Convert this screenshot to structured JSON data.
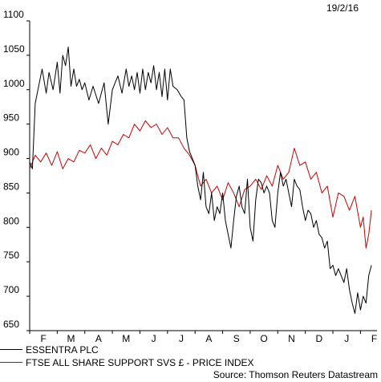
{
  "date_label": "19/2/16",
  "source": "Source: Thomson Reuters Datastream",
  "colors": {
    "essentra": "#000000",
    "ftse": "#cc0000"
  },
  "chart_data": {
    "type": "line",
    "ylim": [
      650,
      1100
    ],
    "yticks": [
      650,
      700,
      750,
      800,
      850,
      900,
      950,
      1000,
      1050,
      1100
    ],
    "xlim": [
      0,
      12.6
    ],
    "month_ticks": [
      "F",
      "M",
      "A",
      "M",
      "J",
      "J",
      "A",
      "S",
      "O",
      "N",
      "D",
      "J",
      "F"
    ],
    "series": [
      {
        "name": "ESSENTRA PLC",
        "color": "#000000",
        "x": [
          0,
          0.1,
          0.2,
          0.3,
          0.45,
          0.6,
          0.7,
          0.85,
          1.0,
          1.1,
          1.2,
          1.3,
          1.4,
          1.5,
          1.6,
          1.7,
          1.8,
          1.9,
          2.0,
          2.15,
          2.3,
          2.5,
          2.7,
          2.85,
          3.0,
          3.1,
          3.2,
          3.35,
          3.5,
          3.6,
          3.7,
          3.8,
          3.9,
          4.0,
          4.1,
          4.2,
          4.3,
          4.4,
          4.5,
          4.6,
          4.7,
          4.8,
          4.9,
          5.0,
          5.1,
          5.2,
          5.35,
          5.5,
          5.6,
          5.7,
          5.8,
          5.9,
          6.0,
          6.1,
          6.2,
          6.3,
          6.4,
          6.5,
          6.6,
          6.7,
          6.8,
          6.9,
          7.0,
          7.1,
          7.2,
          7.3,
          7.4,
          7.5,
          7.6,
          7.7,
          7.8,
          7.9,
          8.0,
          8.1,
          8.2,
          8.3,
          8.4,
          8.5,
          8.6,
          8.7,
          8.8,
          8.9,
          9.0,
          9.1,
          9.2,
          9.3,
          9.4,
          9.5,
          9.6,
          9.7,
          9.8,
          9.9,
          10.0,
          10.1,
          10.2,
          10.3,
          10.4,
          10.5,
          10.6,
          10.7,
          10.8,
          10.9,
          11.0,
          11.1,
          11.2,
          11.3,
          11.4,
          11.5,
          11.6,
          11.7,
          11.8,
          11.9,
          12.0,
          12.1,
          12.2,
          12.3,
          12.4
        ],
        "y": [
          895,
          885,
          980,
          1000,
          1030,
          995,
          1025,
          1000,
          1040,
          995,
          1050,
          1035,
          1062,
          1005,
          1030,
          1005,
          1015,
          1000,
          1010,
          985,
          1005,
          980,
          1010,
          950,
          1000,
          1010,
          1020,
          995,
          1030,
          1005,
          1020,
          1000,
          1025,
          995,
          1030,
          1000,
          1025,
          1010,
          1035,
          1000,
          1025,
          990,
          1030,
          985,
          1030,
          1005,
          1000,
          990,
          985,
          930,
          910,
          900,
          890,
          860,
          840,
          880,
          830,
          820,
          850,
          810,
          830,
          820,
          850,
          810,
          790,
          770,
          810,
          845,
          860,
          830,
          820,
          870,
          800,
          780,
          840,
          870,
          865,
          850,
          860,
          850,
          810,
          800,
          850,
          880,
          860,
          870,
          850,
          830,
          870,
          860,
          855,
          830,
          810,
          825,
          820,
          800,
          810,
          790,
          785,
          770,
          780,
          740,
          745,
          730,
          740,
          730,
          720,
          740,
          710,
          690,
          675,
          705,
          680,
          700,
          690,
          730,
          745
        ]
      },
      {
        "name": "FTSE ALL SHARE SUPPORT SVS £ - PRICE INDEX",
        "color": "#cc0000",
        "x": [
          0,
          0.2,
          0.4,
          0.6,
          0.8,
          1.0,
          1.2,
          1.4,
          1.6,
          1.8,
          2.0,
          2.2,
          2.4,
          2.6,
          2.8,
          3.0,
          3.2,
          3.4,
          3.6,
          3.8,
          4.0,
          4.2,
          4.4,
          4.6,
          4.8,
          5.0,
          5.2,
          5.4,
          5.6,
          5.8,
          6.0,
          6.2,
          6.4,
          6.6,
          6.8,
          7.0,
          7.2,
          7.4,
          7.6,
          7.8,
          8.0,
          8.2,
          8.4,
          8.6,
          8.8,
          9.0,
          9.2,
          9.4,
          9.6,
          9.8,
          10.0,
          10.2,
          10.4,
          10.6,
          10.8,
          11.0,
          11.2,
          11.4,
          11.6,
          11.8,
          12.0,
          12.1,
          12.2,
          12.3,
          12.4
        ],
        "y": [
          885,
          905,
          895,
          908,
          890,
          910,
          885,
          900,
          895,
          912,
          908,
          920,
          900,
          915,
          905,
          925,
          920,
          935,
          930,
          950,
          940,
          955,
          945,
          950,
          935,
          945,
          930,
          930,
          915,
          905,
          890,
          860,
          870,
          850,
          860,
          840,
          865,
          850,
          830,
          855,
          860,
          870,
          855,
          875,
          860,
          890,
          870,
          880,
          915,
          890,
          895,
          870,
          880,
          850,
          860,
          815,
          850,
          845,
          825,
          845,
          800,
          815,
          770,
          790,
          825
        ]
      }
    ]
  },
  "legend": [
    {
      "label": "ESSENTRA PLC",
      "color": "#000000"
    },
    {
      "label": "FTSE ALL SHARE SUPPORT SVS £ - PRICE INDEX",
      "color": "#cc0000"
    }
  ]
}
